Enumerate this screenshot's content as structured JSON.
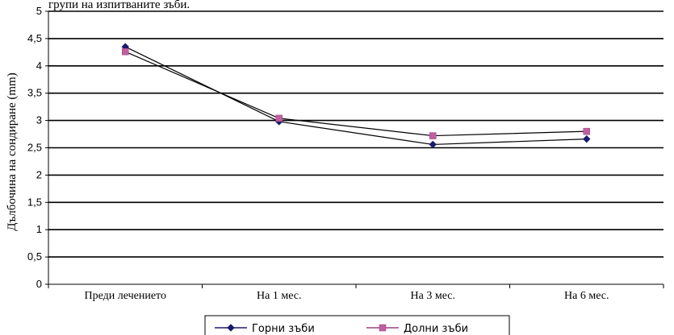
{
  "top_text": "групи на изпитваните зъби.",
  "chart_data": {
    "type": "line",
    "title": "",
    "xlabel": "",
    "ylabel": "Дълбочина на сондиране (mm)",
    "categories": [
      "Преди лечението",
      "На 1 мес.",
      "На 3 мес.",
      "На 6 мес."
    ],
    "ylim": [
      0,
      5
    ],
    "yticks": [
      "0",
      "0,5",
      "1",
      "1,5",
      "2",
      "2,5",
      "3",
      "3,5",
      "4",
      "4,5",
      "5"
    ],
    "grid": true,
    "legend_position": "bottom",
    "series": [
      {
        "name": "Горни зъби",
        "values": [
          4.35,
          2.98,
          2.56,
          2.66
        ],
        "color": "#1a1a6e",
        "marker": "diamond"
      },
      {
        "name": "Долни зъби",
        "values": [
          4.26,
          3.04,
          2.72,
          2.8
        ],
        "color": "#c060a0",
        "marker": "square"
      }
    ]
  }
}
